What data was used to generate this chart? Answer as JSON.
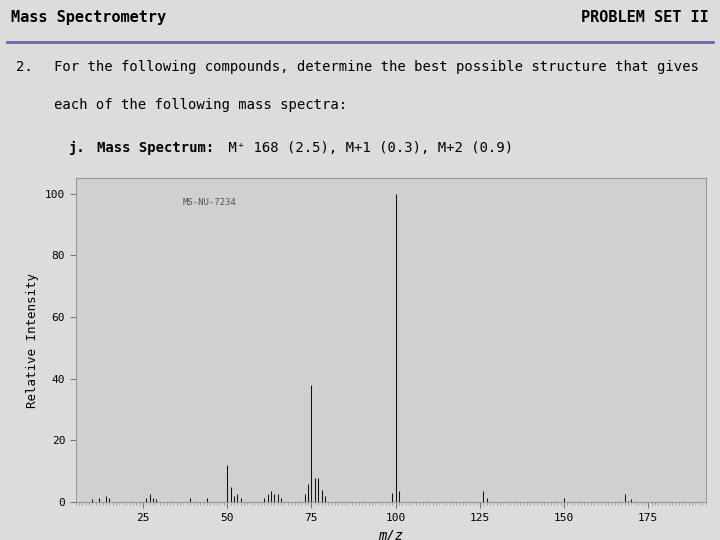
{
  "title_left": "Mass Spectrometry",
  "title_right": "PROBLEM SET II",
  "problem_number": "2.",
  "problem_line1": "For the following compounds, determine the best possible structure that gives",
  "problem_line2": "each of the following mass spectra:",
  "sub_label": "j.",
  "sub_text_bold": "Mass Spectrum:",
  "sub_text_normal": " M⁺ 168 (2.5), M+1 (0.3), M+2 (0.9)",
  "spectrum_label": "MS-NU-7234",
  "xlabel": "m/z",
  "ylabel": "Relative Intensity",
  "xlim": [
    5,
    192
  ],
  "ylim": [
    0,
    105
  ],
  "xticks": [
    25,
    50,
    75,
    100,
    125,
    150,
    175
  ],
  "yticks": [
    0,
    20,
    40,
    60,
    80,
    100
  ],
  "ytick_labels": [
    "0",
    "20",
    "40",
    "60",
    "80",
    "100"
  ],
  "bg_color": "#dcdcdc",
  "plot_bg_color": "#d0d0d0",
  "peaks": [
    [
      10,
      1.0
    ],
    [
      12,
      1.5
    ],
    [
      14,
      2.0
    ],
    [
      15,
      1.5
    ],
    [
      26,
      1.5
    ],
    [
      27,
      2.5
    ],
    [
      28,
      1.5
    ],
    [
      29,
      1.0
    ],
    [
      39,
      1.5
    ],
    [
      44,
      1.2
    ],
    [
      50,
      12.0
    ],
    [
      51,
      5.0
    ],
    [
      52,
      2.0
    ],
    [
      53,
      2.5
    ],
    [
      54,
      1.5
    ],
    [
      61,
      1.5
    ],
    [
      62,
      2.5
    ],
    [
      63,
      3.5
    ],
    [
      64,
      2.5
    ],
    [
      65,
      2.5
    ],
    [
      66,
      1.5
    ],
    [
      73,
      2.5
    ],
    [
      74,
      6.0
    ],
    [
      75,
      38.0
    ],
    [
      76,
      8.0
    ],
    [
      77,
      8.0
    ],
    [
      78,
      4.0
    ],
    [
      79,
      2.0
    ],
    [
      99,
      3.0
    ],
    [
      100,
      100.0
    ],
    [
      101,
      3.5
    ],
    [
      126,
      3.5
    ],
    [
      127,
      1.5
    ],
    [
      150,
      1.5
    ],
    [
      168,
      2.5
    ],
    [
      169,
      0.3
    ],
    [
      170,
      0.9
    ]
  ],
  "line_color": "#111111",
  "header_line_color": "#6666aa",
  "title_fontsize": 11,
  "body_fontsize": 10,
  "axis_fontsize": 8
}
